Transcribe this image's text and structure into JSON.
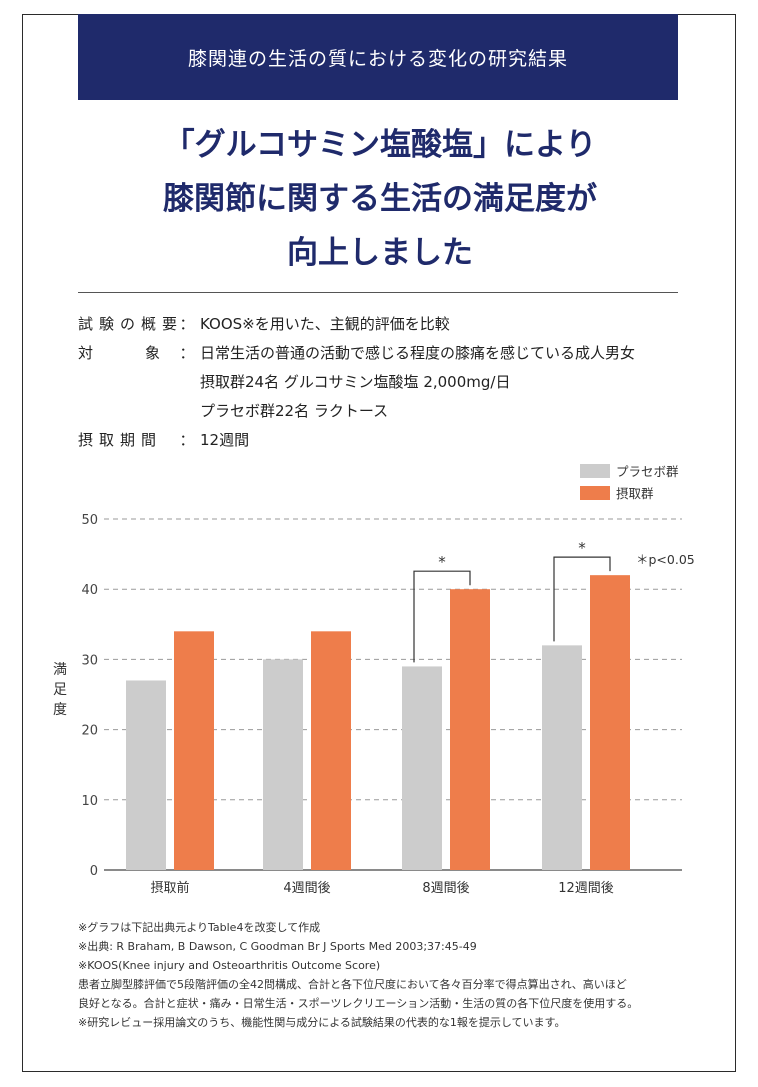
{
  "banner": {
    "text": "膝関連の生活の質における変化の研究結果"
  },
  "headline": {
    "lines": [
      "「グルコサミン塩酸塩」により",
      "膝関節に関する生活の満足度が",
      "向上しました"
    ]
  },
  "info": {
    "overview_label": "試験の概要",
    "overview_value": "KOOS※を用いた、主観的評価を比較",
    "subject_label": "対象",
    "subject_value": "日常生活の普通の活動で感じる程度の膝痛を感じている成人男女",
    "subject_line2": "摂取群24名 グルコサミン塩酸塩 2,000mg/日",
    "subject_line3": "プラセボ群22名 ラクトース",
    "period_label": "摂取期間",
    "period_value": "12週間",
    "colon": "："
  },
  "chart_data": {
    "type": "bar",
    "categories": [
      "摂取前",
      "4週間後",
      "8週間後",
      "12週間後"
    ],
    "series": [
      {
        "name": "プラセボ群",
        "values": [
          27,
          30,
          29,
          32
        ],
        "color": "#cccccc"
      },
      {
        "name": "摂取群",
        "values": [
          34,
          34,
          40,
          42
        ],
        "color": "#ee7d4b"
      }
    ],
    "ylabel": "満足度",
    "ylim": [
      0,
      50
    ],
    "yticks": [
      0,
      10,
      20,
      30,
      40,
      50
    ],
    "grid": true,
    "legend": "top-right",
    "significance": [
      {
        "category": "8週間後",
        "mark": "*"
      },
      {
        "category": "12週間後",
        "mark": "*"
      }
    ],
    "annotation": "＊p<0.05"
  },
  "notes": [
    "※グラフは下記出典元よりTable4を改変して作成",
    "※出典: R Braham, B Dawson, C Goodman Br J Sports Med 2003;37:45-49",
    "※KOOS(Knee injury and Osteoarthritis Outcome Score)",
    "患者立脚型膝評価で5段階評価の全42問構成、合計と各下位尺度において各々百分率で得点算出され、高いほど",
    "良好となる。合計と症状・痛み・日常生活・スポーツレクリエーション活動・生活の質の各下位尺度を使用する。",
    "※研究レビュー採用論文のうち、機能性関与成分による試験結果の代表的な1報を提示しています。"
  ]
}
